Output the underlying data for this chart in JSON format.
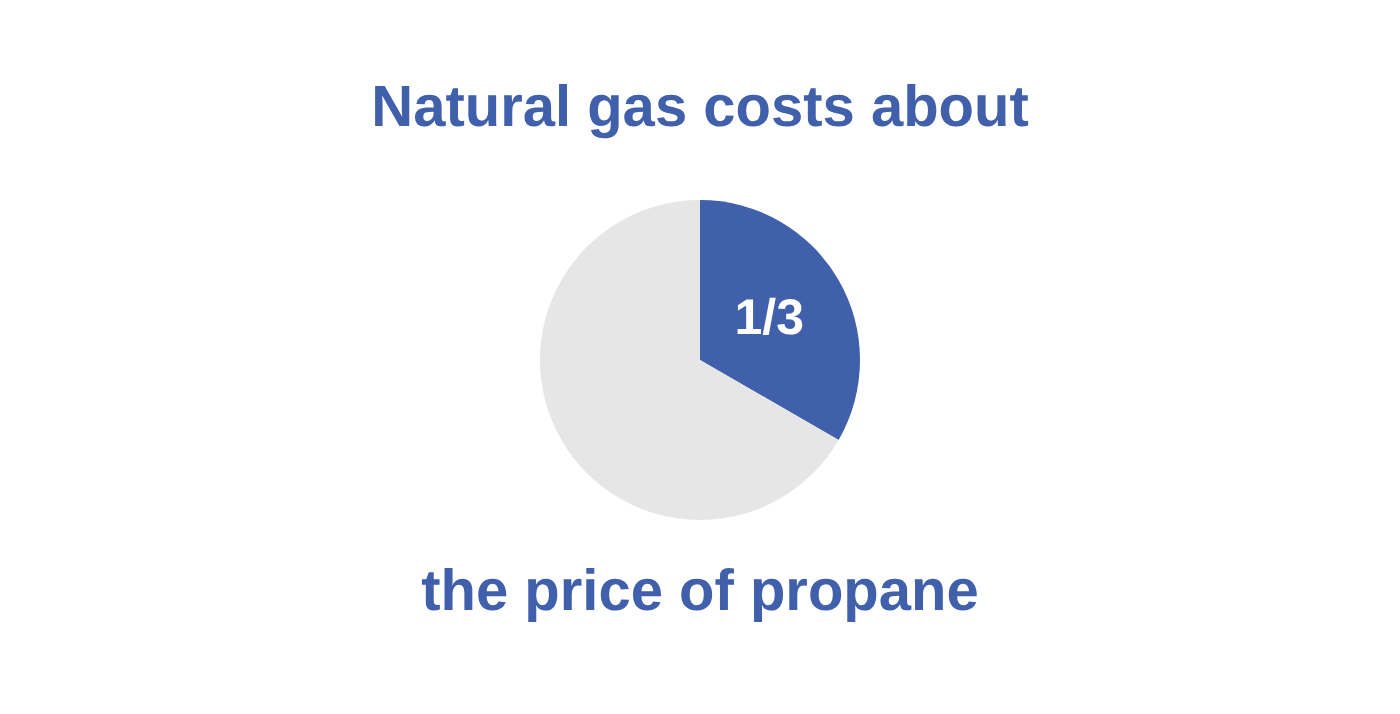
{
  "chart_data": {
    "type": "pie",
    "title": "Natural gas costs about",
    "annotations": [
      "the price of propane"
    ],
    "categories": [
      null,
      null
    ],
    "values": [
      0.3333,
      0.6667
    ],
    "colors": [
      "#4060ab",
      "#e6e6e6"
    ],
    "value_labels": [
      "1/3",
      null
    ],
    "legend": false
  }
}
